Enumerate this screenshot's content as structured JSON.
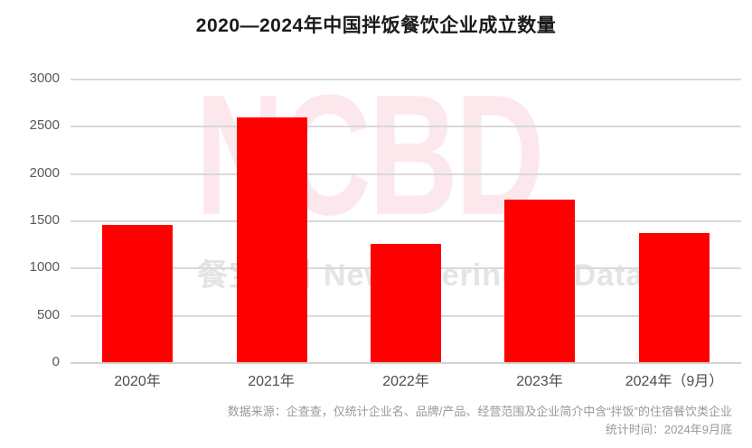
{
  "page": {
    "title": "2020—2024年中国拌饭餐饮企业成立数量"
  },
  "watermark": {
    "brand": "NCBD",
    "subtext": "餐宝典丨NewCateringBigData"
  },
  "footer": {
    "line1": "数据来源：企查查，仅统计企业名、品牌/产品、经营范围及企业简介中含“拌饭”的住宿餐饮类企业",
    "line2": "统计时间：2024年9月底"
  },
  "colors": {
    "bar": "#ff0000",
    "gridline": "#d9d9d9",
    "axis_line": "#d2d2d2",
    "y_label": "#595959",
    "x_label": "#4d4d4d",
    "title": "#1a1a1a",
    "footer": "#999999",
    "watermark_pink": "#fce8ec",
    "watermark_gray": "#e4e4e4"
  },
  "chart_data": {
    "type": "bar",
    "title": "2020—2024年中国拌饭餐饮企业成立数量",
    "categories": [
      "2020年",
      "2021年",
      "2022年",
      "2023年",
      "2024年（9月）"
    ],
    "values": [
      1450,
      2590,
      1250,
      1715,
      1370
    ],
    "xlabel": "",
    "ylabel": "",
    "ylim": [
      0,
      3000
    ],
    "ytick_step": 500,
    "ytick_labels": [
      "0",
      "500",
      "1000",
      "1500",
      "2000",
      "2500",
      "3000"
    ],
    "grid": true,
    "legend": false,
    "bar_color": "#ff0000"
  }
}
